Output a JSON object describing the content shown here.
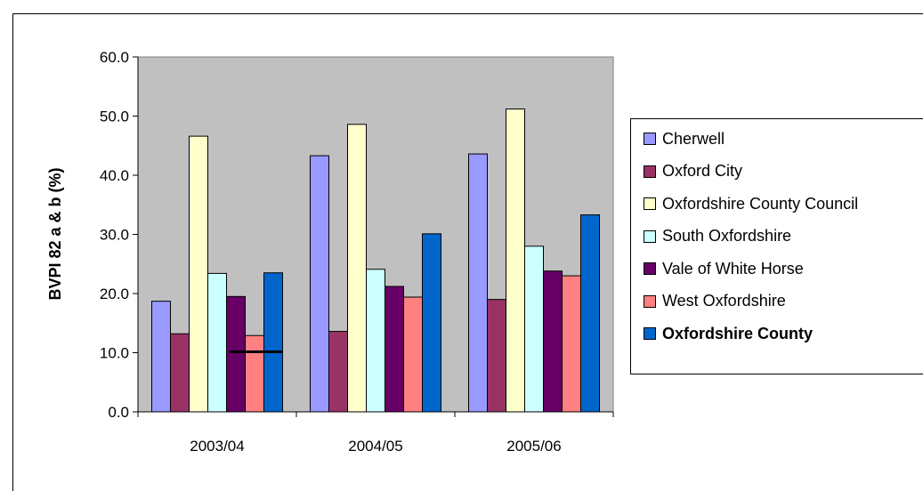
{
  "chart_data": {
    "type": "bar",
    "categories": [
      "2003/04",
      "2004/05",
      "2005/06"
    ],
    "ylabel": "BVPI 82 a & b (%)",
    "xlabel": "",
    "ylim": [
      0,
      60
    ],
    "yticks": [
      "0.0",
      "10.0",
      "20.0",
      "30.0",
      "40.0",
      "50.0",
      "60.0"
    ],
    "grid": false,
    "plot_background": "#c0c0c0",
    "legend_position": "right",
    "series": [
      {
        "name": "Cherwell",
        "color": "#9999ff",
        "values": [
          18.7,
          43.3,
          43.6
        ]
      },
      {
        "name": "Oxford City",
        "color": "#993366",
        "values": [
          13.2,
          13.6,
          19.0
        ]
      },
      {
        "name": "Oxfordshire County Council",
        "color": "#ffffcc",
        "values": [
          46.6,
          48.6,
          51.2
        ]
      },
      {
        "name": "South Oxfordshire",
        "color": "#ccffff",
        "values": [
          23.4,
          24.1,
          28.0
        ]
      },
      {
        "name": "Vale of White Horse",
        "color": "#660066",
        "values": [
          19.5,
          21.2,
          23.8
        ]
      },
      {
        "name": "West Oxfordshire",
        "color": "#ff8080",
        "values": [
          12.9,
          19.4,
          23.0
        ]
      },
      {
        "name": "Oxfordshire County",
        "color": "#0066cc",
        "values": [
          23.5,
          30.1,
          33.3
        ],
        "bold": true
      }
    ]
  }
}
